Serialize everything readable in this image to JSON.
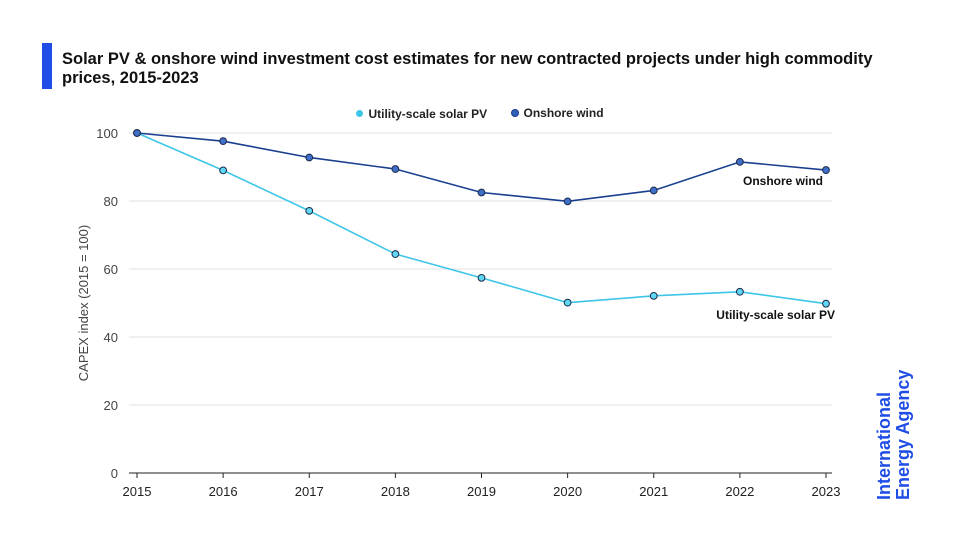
{
  "chart_data": {
    "type": "line",
    "title": "Solar PV & onshore wind investment cost estimates for new contracted projects under high commodity prices, 2015-2023",
    "xlabel": "",
    "ylabel": "CAPEX index (2015 = 100)",
    "ylim": [
      0,
      100
    ],
    "yticks": [
      "0",
      "20",
      "40",
      "60",
      "80",
      "100"
    ],
    "grid": true,
    "legend_position": "top-center",
    "categories": [
      "2015",
      "2016",
      "2017",
      "2018",
      "2019",
      "2020",
      "2021",
      "2022",
      "2023"
    ],
    "series": [
      {
        "name": "Utility-scale solar PV",
        "color": "#3ec6e8",
        "values": [
          100,
          89.0,
          77.1,
          64.4,
          57.4,
          50.1,
          52.1,
          53.3,
          49.8
        ]
      },
      {
        "name": "Onshore wind",
        "color": "#1a3f8f",
        "values": [
          100,
          97.6,
          92.8,
          89.4,
          82.5,
          79.9,
          83.1,
          91.5,
          89.1
        ]
      }
    ],
    "annotations": [
      "Onshore wind",
      "Utility-scale solar PV"
    ]
  },
  "brand": {
    "line1": "International",
    "line2": "Energy Agency",
    "color": "#1f4de6"
  }
}
